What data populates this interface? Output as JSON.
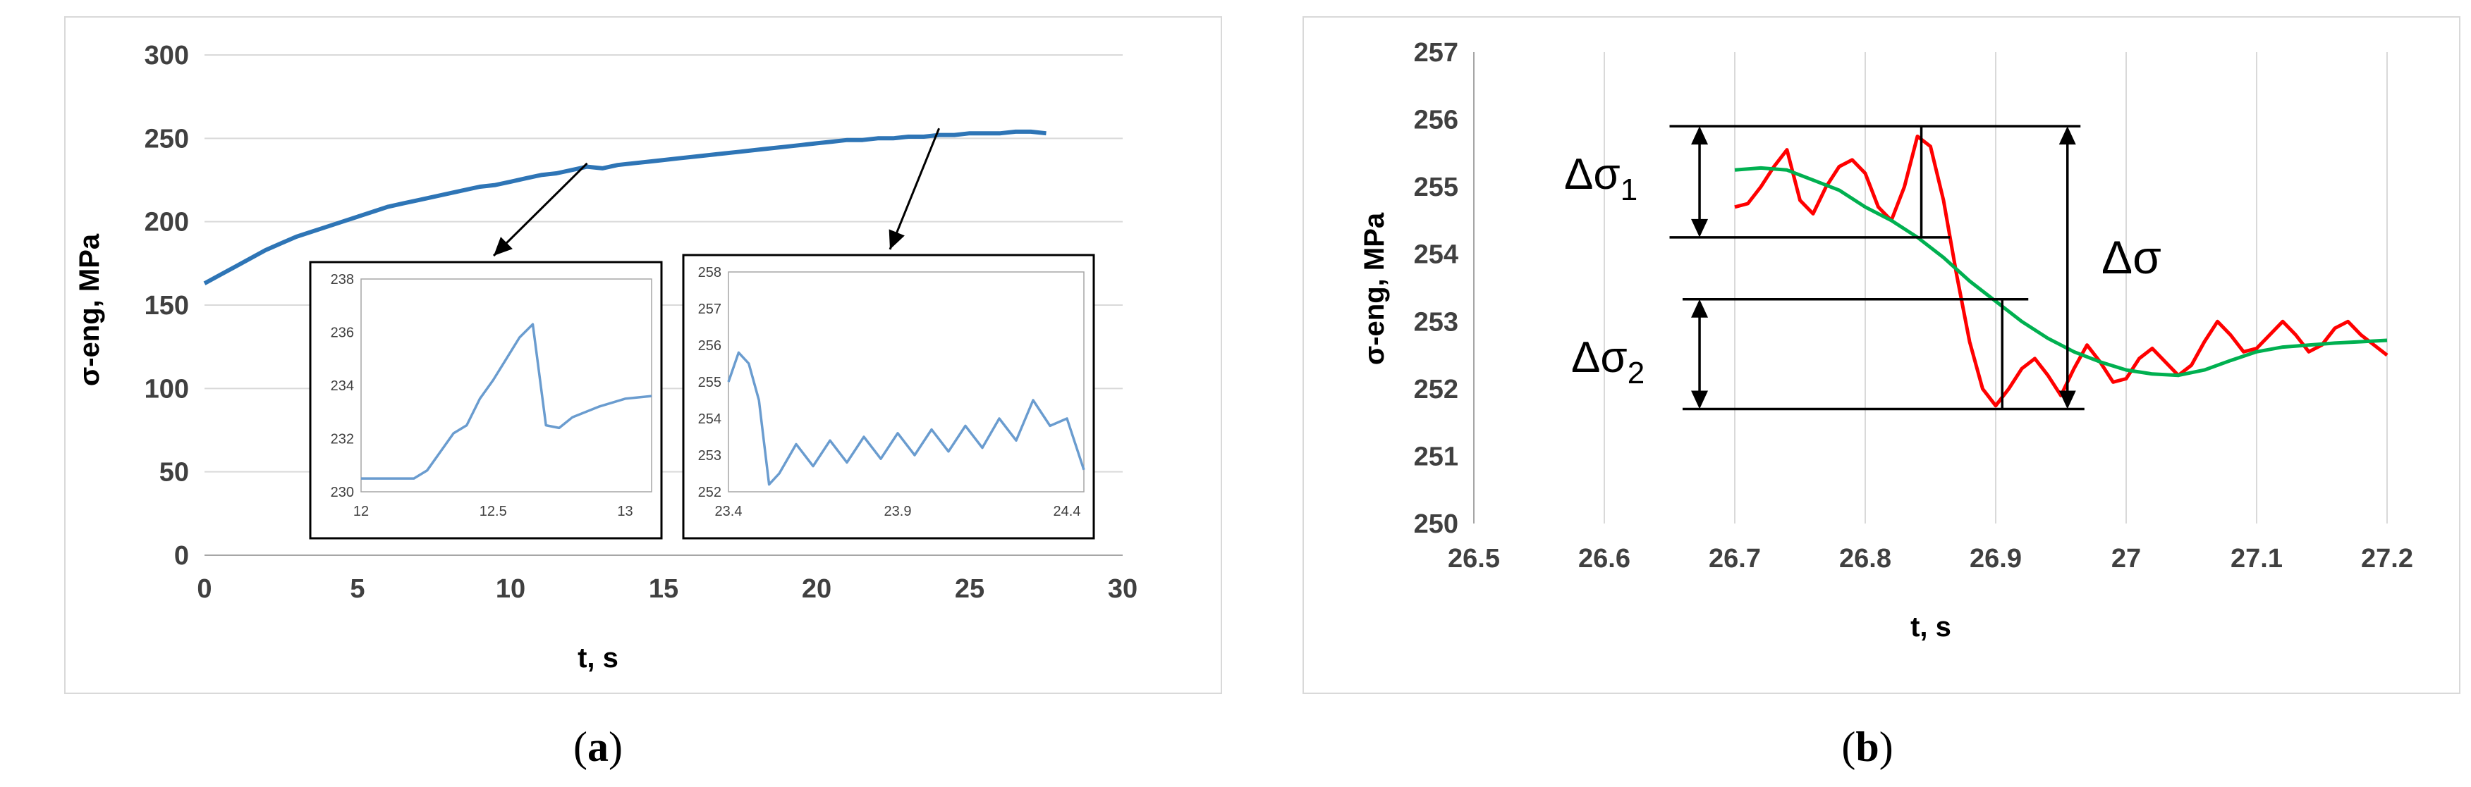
{
  "panels": [
    {
      "label_open": "(",
      "label_letter": "a",
      "label_close": ")"
    },
    {
      "label_open": "(",
      "label_letter": "b",
      "label_close": ")"
    }
  ],
  "chart_data": [
    {
      "id": "a",
      "type": "line",
      "xlabel": "t, s",
      "ylabel": "σ-eng, MPa",
      "xlim": [
        0,
        30
      ],
      "ylim": [
        0,
        300
      ],
      "xticks": [
        0,
        5,
        10,
        15,
        20,
        25,
        30
      ],
      "yticks": [
        0,
        50,
        100,
        150,
        200,
        250,
        300
      ],
      "grid": "horizontal",
      "series": [
        {
          "color": "#2e75b6",
          "x": [
            0,
            0.5,
            1,
            1.5,
            2,
            2.5,
            3,
            3.5,
            4,
            4.5,
            5,
            5.5,
            6,
            6.5,
            7,
            7.5,
            8,
            8.5,
            9,
            9.5,
            10,
            10.5,
            11,
            11.5,
            12,
            12.5,
            13,
            13.5,
            14,
            14.5,
            15,
            15.5,
            16,
            16.5,
            17,
            17.5,
            18,
            18.5,
            19,
            19.5,
            20,
            20.5,
            21,
            21.5,
            22,
            22.5,
            23,
            23.5,
            24,
            24.5,
            25,
            25.5,
            26,
            26.5,
            27,
            27.5
          ],
          "y": [
            163,
            168,
            173,
            178,
            183,
            187,
            191,
            194,
            197,
            200,
            203,
            206,
            209,
            211,
            213,
            215,
            217,
            219,
            221,
            222,
            224,
            226,
            228,
            229,
            231,
            233,
            232,
            234,
            235,
            236,
            237,
            238,
            239,
            240,
            241,
            242,
            243,
            244,
            245,
            246,
            247,
            248,
            249,
            249,
            250,
            250,
            251,
            251,
            252,
            252,
            253,
            253,
            253,
            254,
            254,
            253
          ]
        }
      ],
      "insets": [
        {
          "xlim": [
            12,
            13.1
          ],
          "ylim": [
            230,
            238
          ],
          "xticks": [
            12,
            12.5,
            13
          ],
          "yticks": [
            230,
            232,
            234,
            236,
            238
          ],
          "color": "#6a9ccf",
          "x": [
            12,
            12.1,
            12.2,
            12.25,
            12.3,
            12.35,
            12.4,
            12.45,
            12.5,
            12.55,
            12.6,
            12.65,
            12.7,
            12.75,
            12.8,
            12.9,
            13,
            13.1
          ],
          "y": [
            230.5,
            230.5,
            230.5,
            230.8,
            231.5,
            232.2,
            232.5,
            233.5,
            234.2,
            235.0,
            235.8,
            236.3,
            232.5,
            232.4,
            232.8,
            233.2,
            233.5,
            233.6
          ]
        },
        {
          "xlim": [
            23.4,
            24.45
          ],
          "ylim": [
            252,
            258
          ],
          "xticks": [
            23.4,
            23.9,
            24.4
          ],
          "yticks": [
            252,
            253,
            254,
            255,
            256,
            257,
            258
          ],
          "color": "#6a9ccf",
          "x": [
            23.4,
            23.43,
            23.46,
            23.49,
            23.52,
            23.55,
            23.6,
            23.65,
            23.7,
            23.75,
            23.8,
            23.85,
            23.9,
            23.95,
            24,
            24.05,
            24.1,
            24.15,
            24.2,
            24.25,
            24.3,
            24.35,
            24.4,
            24.45
          ],
          "y": [
            255.0,
            255.8,
            255.5,
            254.5,
            252.2,
            252.5,
            253.3,
            252.7,
            253.4,
            252.8,
            253.5,
            252.9,
            253.6,
            253.0,
            253.7,
            253.1,
            253.8,
            253.2,
            254.0,
            253.4,
            254.5,
            253.8,
            254.0,
            252.6
          ]
        }
      ]
    },
    {
      "id": "b",
      "type": "line",
      "xlabel": "t, s",
      "ylabel": "σ-eng, MPa",
      "xlim": [
        26.5,
        27.2
      ],
      "ylim": [
        250,
        257
      ],
      "xticks": [
        26.5,
        26.6,
        26.7,
        26.8,
        26.9,
        27,
        27.1,
        27.2
      ],
      "yticks": [
        250,
        251,
        252,
        253,
        254,
        255,
        256,
        257
      ],
      "grid": "vertical",
      "series": [
        {
          "color": "#ff0000",
          "x": [
            26.7,
            26.71,
            26.72,
            26.73,
            26.74,
            26.75,
            26.76,
            26.77,
            26.78,
            26.79,
            26.8,
            26.81,
            26.82,
            26.83,
            26.84,
            26.85,
            26.86,
            26.87,
            26.88,
            26.89,
            26.9,
            26.91,
            26.92,
            26.93,
            26.94,
            26.95,
            26.96,
            26.97,
            26.98,
            26.99,
            27,
            27.01,
            27.02,
            27.03,
            27.04,
            27.05,
            27.06,
            27.07,
            27.08,
            27.09,
            27.1,
            27.11,
            27.12,
            27.13,
            27.14,
            27.15,
            27.16,
            27.17,
            27.18,
            27.19,
            27.2
          ],
          "y": [
            254.7,
            254.75,
            255.0,
            255.3,
            255.55,
            254.8,
            254.6,
            255.0,
            255.3,
            255.4,
            255.2,
            254.7,
            254.5,
            255.0,
            255.75,
            255.6,
            254.8,
            253.7,
            252.7,
            252.0,
            251.75,
            252.0,
            252.3,
            252.45,
            252.2,
            251.9,
            252.3,
            252.65,
            252.4,
            252.1,
            252.15,
            252.45,
            252.6,
            252.4,
            252.2,
            252.35,
            252.7,
            253.0,
            252.8,
            252.55,
            252.6,
            252.8,
            253.0,
            252.8,
            252.55,
            252.65,
            252.9,
            253.0,
            252.8,
            252.65,
            252.5
          ]
        },
        {
          "color": "#00b050",
          "x": [
            26.7,
            26.72,
            26.74,
            26.76,
            26.78,
            26.8,
            26.82,
            26.84,
            26.86,
            26.88,
            26.9,
            26.92,
            26.94,
            26.96,
            26.98,
            27,
            27.02,
            27.04,
            27.06,
            27.08,
            27.1,
            27.12,
            27.14,
            27.16,
            27.18,
            27.2
          ],
          "y": [
            255.25,
            255.28,
            255.25,
            255.1,
            254.95,
            254.7,
            254.5,
            254.25,
            253.95,
            253.6,
            253.3,
            253.0,
            252.75,
            252.55,
            252.4,
            252.28,
            252.22,
            252.2,
            252.28,
            252.42,
            252.55,
            252.62,
            252.65,
            252.68,
            252.7,
            252.72
          ]
        }
      ],
      "annotations": {
        "delta_sigma_1_base": "Δσ",
        "delta_sigma_1_sub": "1",
        "delta_sigma_2_base": "Δσ",
        "delta_sigma_2_sub": "2",
        "delta_sigma": "Δσ",
        "levels": {
          "top": 255.9,
          "upper_mid": 254.25,
          "lower_mid": 253.33,
          "bottom": 251.7
        }
      }
    }
  ]
}
